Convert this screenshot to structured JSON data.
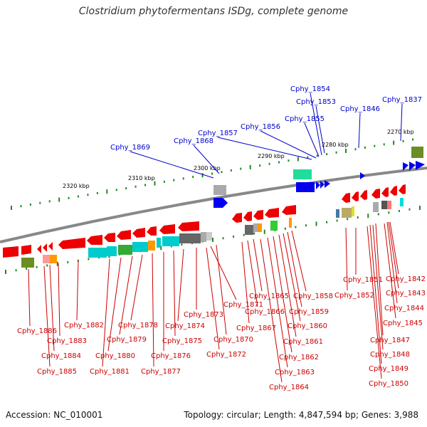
{
  "title": "Clostridium phytofermentans ISDg, complete genome",
  "footer": {
    "accession": "Accession: NC_010001",
    "summary": "Topology: circular; Length: 4,847,594 bp; Genes: 3,988"
  },
  "kbp_labels": [
    "2270 kbp",
    "2280 kbp",
    "2290 kbp",
    "2300 kbp",
    "2310 kbp",
    "2320 kbp"
  ],
  "top_genes": [
    "Cphy_1837",
    "Cphy_1846",
    "Cphy_1853",
    "Cphy_1854",
    "Cphy_1855",
    "Cphy_1856",
    "Cphy_1857",
    "Cphy_1868",
    "Cphy_1869"
  ],
  "bottom_genes": [
    "Cphy_1842",
    "Cphy_1843",
    "Cphy_1844",
    "Cphy_1845",
    "Cphy_1847",
    "Cphy_1848",
    "Cphy_1849",
    "Cphy_1850",
    "Cphy_1851",
    "Cphy_1852",
    "Cphy_1858",
    "Cphy_1859",
    "Cphy_1860",
    "Cphy_1861",
    "Cphy_1862",
    "Cphy_1863",
    "Cphy_1864",
    "Cphy_1865",
    "Cphy_1866",
    "Cphy_1867",
    "Cphy_1870",
    "Cphy_1871",
    "Cphy_1872",
    "Cphy_1873",
    "Cphy_1874",
    "Cphy_1875",
    "Cphy_1876",
    "Cphy_1877",
    "Cphy_1878",
    "Cphy_1879",
    "Cphy_1880",
    "Cphy_1881",
    "Cphy_1882",
    "Cphy_1883",
    "Cphy_1884",
    "Cphy_1885",
    "Cphy_1886"
  ],
  "colors": {
    "forward_label": "#0000cc",
    "reverse_label": "#cc0000",
    "forward_gene": "#0000ee",
    "reverse_gene": "#ee0000",
    "backbone": "#888888",
    "tick": "#228822"
  }
}
